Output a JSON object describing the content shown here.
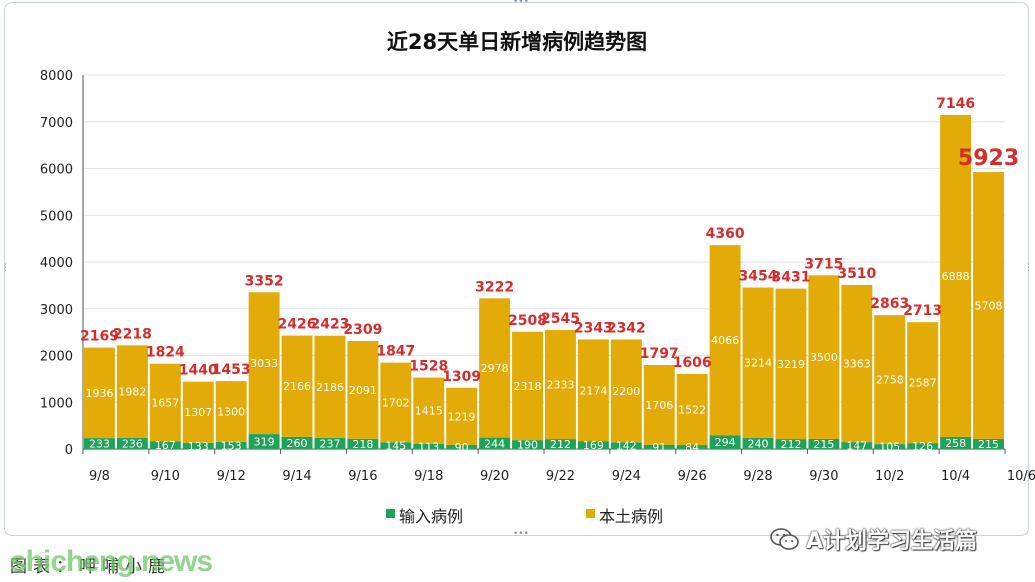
{
  "chart_data": {
    "type": "bar",
    "stacked": true,
    "title": "近28天单日新增病例趋势图",
    "ylim": [
      0,
      8000
    ],
    "yticks": [
      0,
      1000,
      2000,
      3000,
      4000,
      5000,
      6000,
      7000,
      8000
    ],
    "categories": [
      "9/8",
      "9/9",
      "9/10",
      "9/11",
      "9/12",
      "9/13",
      "9/14",
      "9/15",
      "9/16",
      "9/17",
      "9/18",
      "9/19",
      "9/20",
      "9/21",
      "9/22",
      "9/23",
      "9/24",
      "9/25",
      "9/26",
      "9/27",
      "9/28",
      "9/29",
      "9/30",
      "10/1",
      "10/2",
      "10/3",
      "10/4",
      "10/5"
    ],
    "xtick_labels": [
      "9/8",
      "9/10",
      "9/12",
      "9/14",
      "9/16",
      "9/18",
      "9/20",
      "9/22",
      "9/24",
      "9/26",
      "9/28",
      "9/30",
      "10/2",
      "10/4",
      "10/6"
    ],
    "series": [
      {
        "name": "输入病例",
        "color": "#1fa35a",
        "values": [
          233,
          236,
          167,
          133,
          153,
          319,
          260,
          237,
          218,
          145,
          113,
          90,
          244,
          190,
          212,
          169,
          142,
          91,
          84,
          294,
          240,
          212,
          215,
          147,
          105,
          126,
          258,
          215
        ]
      },
      {
        "name": "本土病例",
        "color": "#e3ab08",
        "values": [
          1936,
          1982,
          1657,
          1307,
          1300,
          3033,
          2166,
          2186,
          2091,
          1702,
          1415,
          1219,
          2978,
          2318,
          2333,
          2174,
          2200,
          1706,
          1522,
          4066,
          3214,
          3219,
          3500,
          3363,
          2758,
          2587,
          6888,
          5708
        ]
      }
    ],
    "totals": [
      2169,
      2218,
      1824,
      1440,
      1453,
      3352,
      2426,
      2423,
      2309,
      1847,
      1528,
      1309,
      3222,
      2508,
      2545,
      2343,
      2342,
      1797,
      1606,
      4360,
      3454,
      3431,
      3715,
      3510,
      2863,
      2713,
      7146,
      5923
    ],
    "legend_position": "bottom",
    "grid": "horizontal"
  },
  "colors": {
    "total_label": "#d62c2c",
    "inner_label": "#ffffff",
    "axis_text": "#222222"
  },
  "footer": {
    "credit": "图表：呷哺小鹿",
    "overlay": "shicheng.news"
  },
  "watermark": {
    "icon": "wechat-icon",
    "text": "A计划学习生活篇"
  }
}
